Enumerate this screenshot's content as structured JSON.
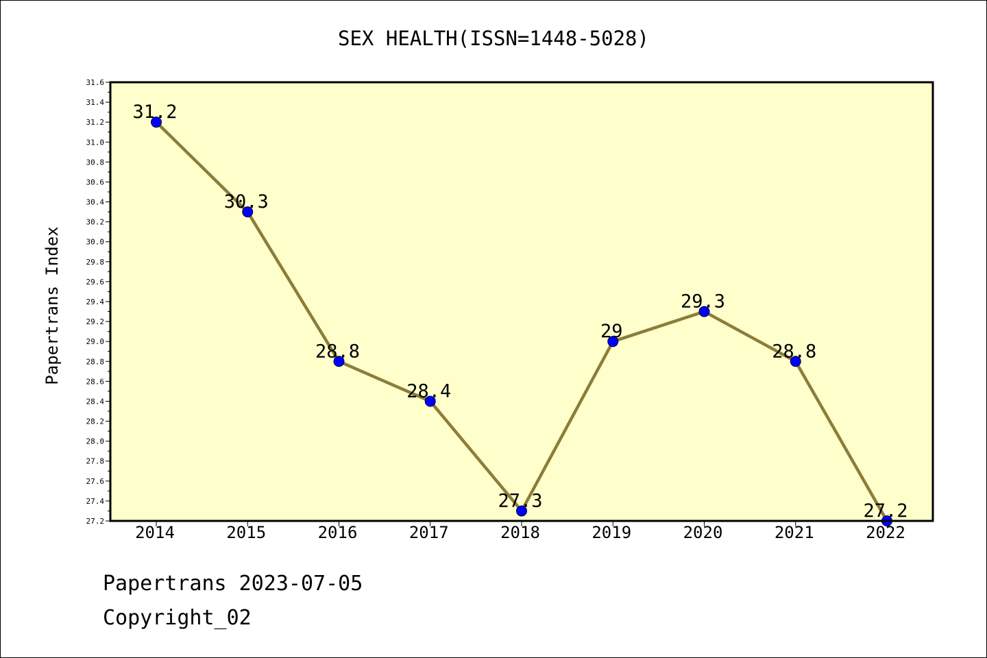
{
  "chart_data": {
    "type": "line",
    "title": "SEX HEALTH(ISSN=1448-5028)",
    "xlabel": "",
    "ylabel": "Papertrans Index",
    "categories": [
      "2014",
      "2015",
      "2016",
      "2017",
      "2018",
      "2019",
      "2020",
      "2021",
      "2022"
    ],
    "values": [
      31.2,
      30.3,
      28.8,
      28.4,
      27.3,
      29.0,
      29.3,
      28.8,
      27.2
    ],
    "data_labels": [
      "31.2",
      "30.3",
      "28.8",
      "28.4",
      "27.3",
      "29",
      "29.3",
      "28.8",
      "27.2"
    ],
    "ylim": [
      27.2,
      31.6
    ],
    "yticks": [
      "27.2",
      "27.4",
      "27.6",
      "27.8",
      "28.0",
      "28.2",
      "28.4",
      "28.6",
      "28.8",
      "29.0",
      "29.2",
      "29.4",
      "29.6",
      "29.8",
      "30.0",
      "30.2",
      "30.4",
      "30.6",
      "30.8",
      "31.0",
      "31.2",
      "31.4",
      "31.6"
    ],
    "grid": false,
    "colors": {
      "plot_background": "#ffffcc",
      "line": "#8b7d3a",
      "marker": "#0000ff"
    }
  },
  "footer": {
    "line1": "Papertrans 2023-07-05",
    "line2": "Copyright_02"
  }
}
